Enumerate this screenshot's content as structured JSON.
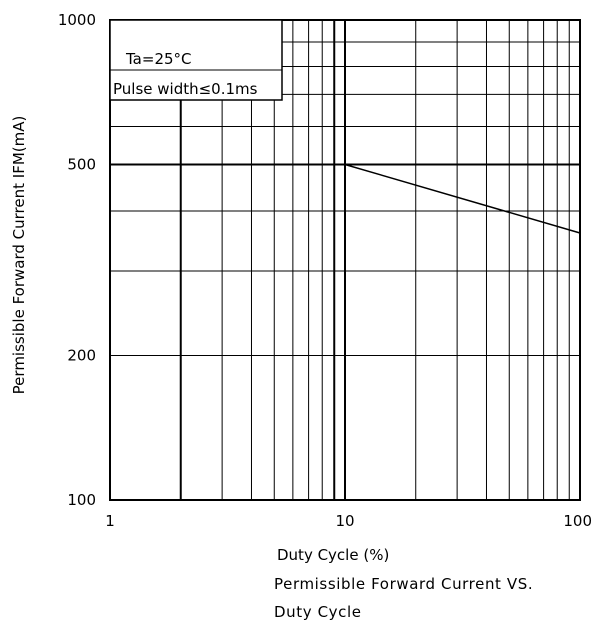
{
  "chart_data": {
    "type": "line",
    "xlabel": "Duty Cycle (%)",
    "ylabel": "Permissible Forward Current IFM(mA)",
    "x_scale": "log",
    "y_scale": "log",
    "xlim": [
      1,
      100
    ],
    "ylim": [
      100,
      1000
    ],
    "x_ticks": [
      "1",
      "10",
      "100"
    ],
    "y_ticks": [
      "100",
      "200",
      "500",
      "1000"
    ],
    "grid": true,
    "annotations": [
      "Ta=25°C",
      "Pulse width≤0.1ms"
    ],
    "series": [
      {
        "x": [
          1,
          10,
          100
        ],
        "y": [
          500,
          500,
          360
        ]
      }
    ]
  },
  "caption": {
    "line1": "Permissible Forward Current VS.",
    "line2": "Duty Cycle"
  }
}
